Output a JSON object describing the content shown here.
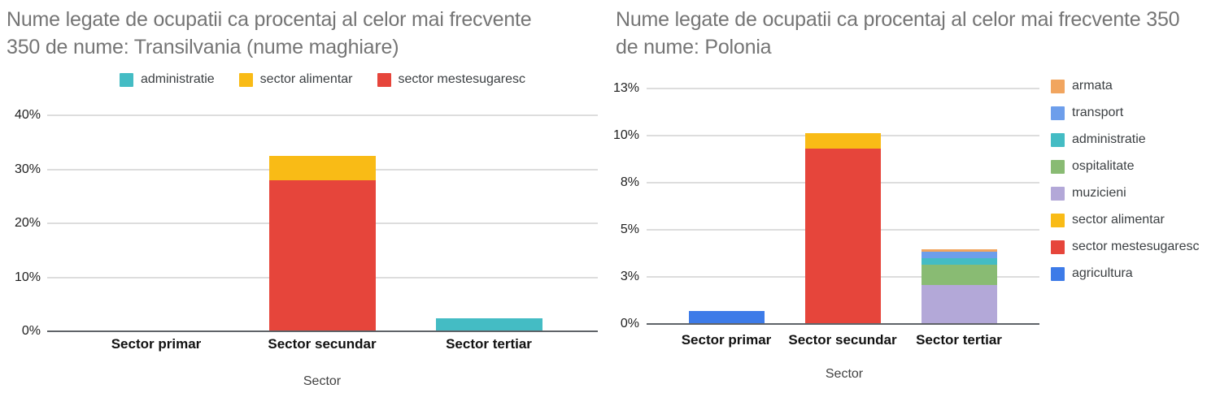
{
  "chart_data": [
    {
      "type": "bar",
      "stacked": true,
      "title": "Nume legate de ocupatii ca procentaj al celor mai frecvente 350 de nume: Transilvania (nume maghiare)",
      "title_lines": [
        "Nume legate de ocupatii ca procentaj al celor mai frecvente",
        "350 de nume: Transilvania (nume maghiare)"
      ],
      "legend_position": "top",
      "grid": true,
      "categories": [
        "Sector primar",
        "Sector secundar",
        "Sector tertiar"
      ],
      "series": [
        {
          "name": "administratie",
          "color": "#44BCC4",
          "values": [
            0,
            0,
            2.4
          ]
        },
        {
          "name": "sector alimentar",
          "color": "#F9BB16",
          "values": [
            0,
            4.5,
            0
          ]
        },
        {
          "name": "sector mestesugaresc",
          "color": "#E6453B",
          "values": [
            0,
            28,
            0
          ]
        }
      ],
      "xlabel": "Sector",
      "ylabel": "",
      "ylim": [
        0,
        42.5
      ],
      "y_ticks": [
        {
          "label": "0%",
          "value": 0
        },
        {
          "label": "10%",
          "value": 10
        },
        {
          "label": "20%",
          "value": 20
        },
        {
          "label": "30%",
          "value": 30
        },
        {
          "label": "40%",
          "value": 40
        }
      ]
    },
    {
      "type": "bar",
      "stacked": true,
      "title": "Nume legate de ocupatii ca procentaj al celor mai frecvente 350 de nume: Polonia",
      "title_lines": [
        "Nume legate de ocupatii ca procentaj al celor mai frecvente 350",
        "de nume: Polonia"
      ],
      "legend_position": "right",
      "grid": true,
      "categories": [
        "Sector primar",
        "Sector secundar",
        "Sector tertiar"
      ],
      "series": [
        {
          "name": "armata",
          "color": "#F1A55F",
          "values": [
            0,
            0,
            0.12
          ]
        },
        {
          "name": "transport",
          "color": "#6D9EEB",
          "values": [
            0,
            0,
            0.35
          ]
        },
        {
          "name": "administratie",
          "color": "#44BCC4",
          "values": [
            0,
            0,
            0.33
          ]
        },
        {
          "name": "ospitalitate",
          "color": "#89BB73",
          "values": [
            0,
            0,
            1.1
          ]
        },
        {
          "name": "muzicieni",
          "color": "#B3A8D8",
          "values": [
            0,
            0,
            2.05
          ]
        },
        {
          "name": "sector alimentar",
          "color": "#F9BB16",
          "values": [
            0,
            0.85,
            0
          ]
        },
        {
          "name": "sector mestesugaresc",
          "color": "#E6453B",
          "values": [
            0,
            9.3,
            0
          ]
        },
        {
          "name": "agricultura",
          "color": "#3D7BE8",
          "values": [
            0.7,
            0,
            0
          ]
        }
      ],
      "xlabel": "Sector",
      "ylabel": "",
      "ylim": [
        0,
        13
      ],
      "y_ticks": [
        {
          "label": "0%",
          "value": 0
        },
        {
          "label": "3%",
          "value": 2.5
        },
        {
          "label": "5%",
          "value": 5
        },
        {
          "label": "8%",
          "value": 7.5
        },
        {
          "label": "10%",
          "value": 10
        },
        {
          "label": "13%",
          "value": 12.5
        }
      ]
    }
  ]
}
